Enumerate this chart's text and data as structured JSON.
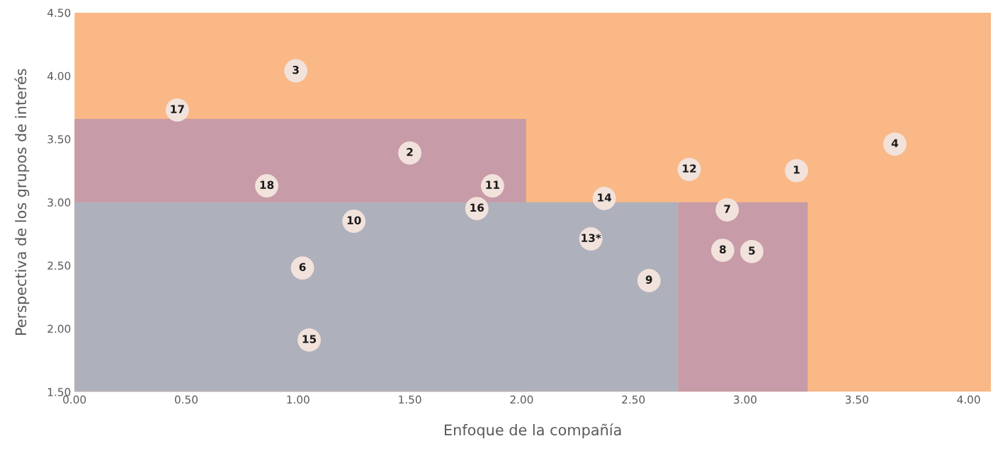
{
  "chart_data": {
    "type": "scatter",
    "xlabel": "Enfoque de la compañía",
    "ylabel": "Perspectiva de los grupos de interés",
    "xlim": [
      0,
      4.1
    ],
    "ylim": [
      1.5,
      4.5
    ],
    "xticks": [
      {
        "value": 0,
        "label": "0.00"
      },
      {
        "value": 0.5,
        "label": "0.50"
      },
      {
        "value": 1,
        "label": "1.00"
      },
      {
        "value": 1.5,
        "label": "1.50"
      },
      {
        "value": 2,
        "label": "2.00"
      },
      {
        "value": 2.5,
        "label": "2.50"
      },
      {
        "value": 3,
        "label": "3.00"
      },
      {
        "value": 3.5,
        "label": "3.50"
      },
      {
        "value": 4,
        "label": "4.00"
      }
    ],
    "yticks": [
      {
        "value": 1.5,
        "label": "1.50"
      },
      {
        "value": 2,
        "label": "2.00"
      },
      {
        "value": 2.5,
        "label": "2.50"
      },
      {
        "value": 3,
        "label": "3.00"
      },
      {
        "value": 3.5,
        "label": "3.50"
      },
      {
        "value": 4,
        "label": "4.00"
      },
      {
        "value": 4.5,
        "label": "4.50"
      }
    ],
    "grid": false,
    "legend": false,
    "bands": [
      {
        "axis": "x",
        "from": 0,
        "to": 4.1,
        "color": "#f9b886"
      }
    ],
    "series": [
      {
        "type": "area",
        "color": "#c79ba8",
        "x": [
          0,
          2.02,
          2.02,
          2.7,
          2.7,
          3.28
        ],
        "values": [
          3.66,
          3.66,
          1.5,
          1.5,
          3.0,
          3.0
        ]
      },
      {
        "type": "area",
        "color": "#aeb1bc",
        "x": [
          0,
          2.7
        ],
        "values": [
          3.0,
          3.0
        ]
      },
      {
        "marker": "circle",
        "color": "#f2e2dc",
        "x": [
          3.23,
          1.5,
          0.99,
          3.67,
          3.03,
          1.02,
          2.92,
          2.9,
          2.57,
          1.25,
          1.87,
          2.75,
          2.31,
          2.37,
          1.05,
          1.8,
          0.46,
          0.86
        ],
        "values": [
          3.25,
          3.39,
          4.04,
          3.46,
          2.61,
          2.48,
          2.94,
          2.62,
          2.38,
          2.85,
          3.13,
          3.26,
          2.71,
          3.03,
          1.91,
          2.95,
          3.73,
          3.13
        ]
      }
    ],
    "annotations": [
      {
        "text": "1",
        "x": 3.23,
        "y": 3.25
      },
      {
        "text": "2",
        "x": 1.5,
        "y": 3.39
      },
      {
        "text": "3",
        "x": 0.99,
        "y": 4.04
      },
      {
        "text": "4",
        "x": 3.67,
        "y": 3.46
      },
      {
        "text": "5",
        "x": 3.03,
        "y": 2.61
      },
      {
        "text": "6",
        "x": 1.02,
        "y": 2.48
      },
      {
        "text": "7",
        "x": 2.92,
        "y": 2.94
      },
      {
        "text": "8",
        "x": 2.9,
        "y": 2.62
      },
      {
        "text": "9",
        "x": 2.57,
        "y": 2.38
      },
      {
        "text": "10",
        "x": 1.25,
        "y": 2.85
      },
      {
        "text": "11",
        "x": 1.87,
        "y": 3.13
      },
      {
        "text": "12",
        "x": 2.75,
        "y": 3.26
      },
      {
        "text": "13*",
        "x": 2.31,
        "y": 2.71
      },
      {
        "text": "14",
        "x": 2.37,
        "y": 3.03
      },
      {
        "text": "15",
        "x": 1.05,
        "y": 1.91
      },
      {
        "text": "16",
        "x": 1.8,
        "y": 2.95
      },
      {
        "text": "17",
        "x": 0.46,
        "y": 3.73
      },
      {
        "text": "18",
        "x": 0.86,
        "y": 3.13
      }
    ]
  }
}
